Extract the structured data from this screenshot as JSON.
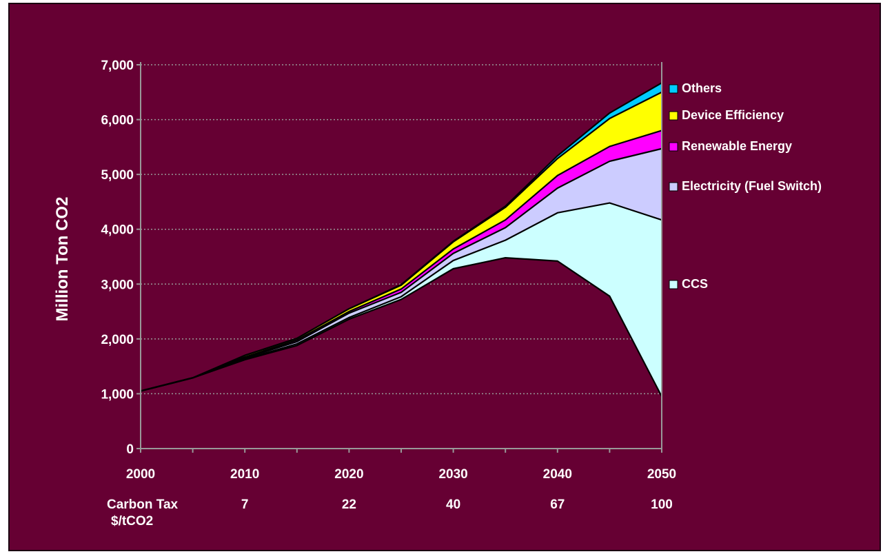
{
  "chart_data": {
    "type": "area",
    "stacked": true,
    "ylabel": "Million Ton CO2",
    "ylim": [
      0,
      7000
    ],
    "y_ticks": [
      "0",
      "1,000",
      "2,000",
      "3,000",
      "4,000",
      "5,000",
      "6,000",
      "7,000"
    ],
    "y_tick_values": [
      0,
      1000,
      2000,
      3000,
      4000,
      5000,
      6000,
      7000
    ],
    "x": [
      2000,
      2005,
      2010,
      2015,
      2020,
      2025,
      2030,
      2035,
      2040,
      2045,
      2050
    ],
    "x_tick_labels": [
      "2000",
      "2010",
      "2020",
      "2030",
      "2040",
      "2050"
    ],
    "carbon_tax": {
      "label_line1": "Carbon Tax",
      "label_line2": "$/tCO2",
      "values": [
        "7",
        "22",
        "40",
        "67",
        "100"
      ]
    },
    "grid": "horizontal-dotted",
    "legend_position": "right",
    "baseline": [
      1050,
      1290,
      1620,
      1880,
      2360,
      2720,
      3280,
      3480,
      3420,
      2780,
      950
    ],
    "series": [
      {
        "name": "CCS",
        "color": "#ccffff",
        "values": [
          0,
          0,
          10,
          30,
          30,
          50,
          150,
          320,
          880,
          1700,
          3220
        ]
      },
      {
        "name": "Electricity (Fuel Switch)",
        "color": "#ccccff",
        "values": [
          0,
          0,
          20,
          40,
          80,
          80,
          130,
          230,
          450,
          760,
          1300
        ]
      },
      {
        "name": "Renewable Energy",
        "color": "#ff00ff",
        "values": [
          0,
          0,
          20,
          30,
          30,
          60,
          80,
          140,
          230,
          270,
          330
        ]
      },
      {
        "name": "Device Efficiency",
        "color": "#ffff00",
        "values": [
          0,
          0,
          30,
          30,
          50,
          70,
          130,
          230,
          310,
          510,
          700
        ]
      },
      {
        "name": "Others",
        "color": "#00ccff",
        "values": [
          0,
          0,
          0,
          0,
          0,
          10,
          10,
          20,
          50,
          100,
          170
        ]
      }
    ],
    "legend_order": [
      "Others",
      "Device Efficiency",
      "Renewable Energy",
      "Electricity (Fuel Switch)",
      "CCS"
    ]
  },
  "colors": {
    "background": "#660033",
    "plot_border": "#999999",
    "grid": "#999999",
    "text": "#ffffff",
    "line": "#000000"
  }
}
